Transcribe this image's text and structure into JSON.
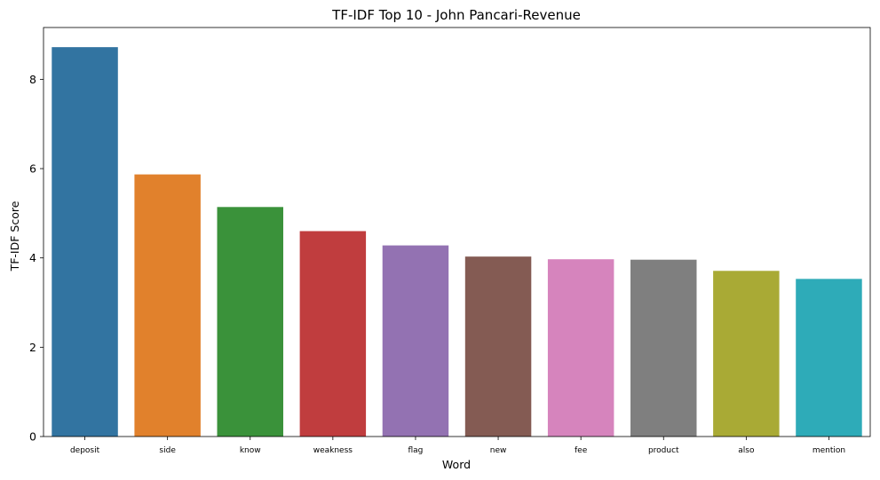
{
  "chart_data": {
    "type": "bar",
    "title": "TF-IDF Top 10 - John Pancari-Revenue",
    "xlabel": "Word",
    "ylabel": "TF-IDF Score",
    "categories": [
      "deposit",
      "side",
      "know",
      "weakness",
      "flag",
      "new",
      "fee",
      "product",
      "also",
      "mention"
    ],
    "values": [
      8.72,
      5.87,
      5.14,
      4.6,
      4.28,
      4.03,
      3.97,
      3.96,
      3.71,
      3.53
    ],
    "colors": [
      "#3274a1",
      "#e1812c",
      "#3a923a",
      "#c03d3e",
      "#9372b2",
      "#845b53",
      "#d684bd",
      "#7f7f7f",
      "#a9aa35",
      "#2eabb8"
    ],
    "ylim": [
      0,
      9.16
    ],
    "yticks": [
      0,
      2,
      4,
      6,
      8
    ],
    "grid": false,
    "legend": "none"
  }
}
